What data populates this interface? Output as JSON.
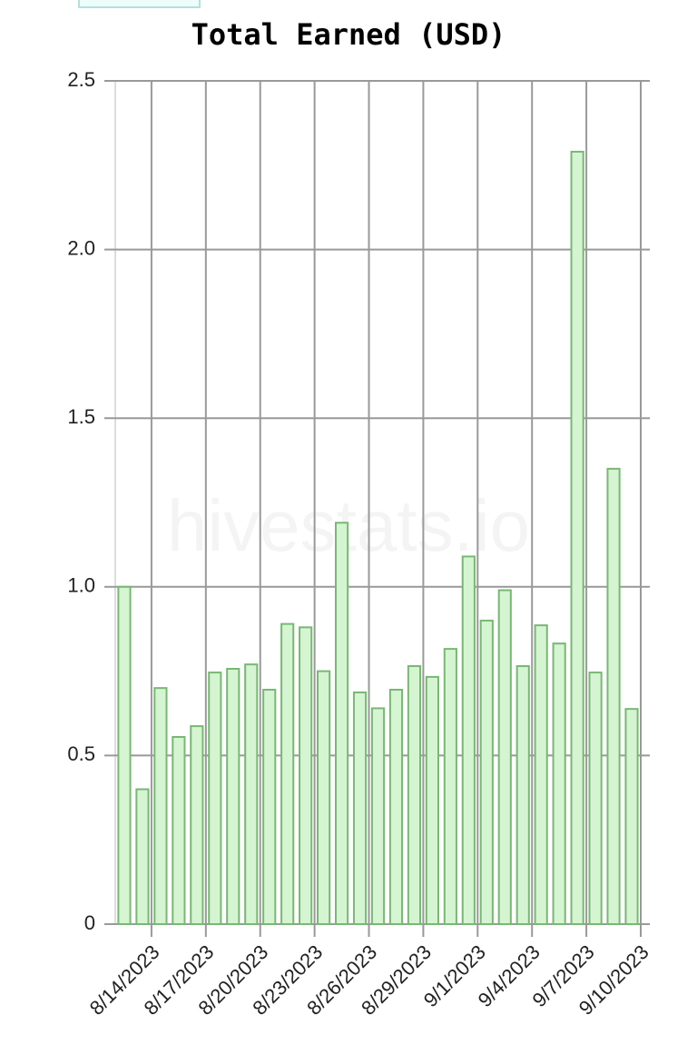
{
  "chart_data": {
    "type": "bar",
    "title": "Total Earned (USD)",
    "watermark": "hivestats.io",
    "categories": [
      null,
      "8/14/2023",
      null,
      null,
      "8/17/2023",
      null,
      null,
      "8/20/2023",
      null,
      null,
      "8/23/2023",
      null,
      null,
      "8/26/2023",
      null,
      null,
      "8/29/2023",
      null,
      null,
      "9/1/2023",
      null,
      null,
      "9/4/2023",
      null,
      null,
      "9/7/2023",
      null,
      null,
      "9/10/2023"
    ],
    "values": [
      1.0,
      0.4,
      0.7,
      0.555,
      0.587,
      0.746,
      0.757,
      0.77,
      0.695,
      0.89,
      0.88,
      0.75,
      1.19,
      0.687,
      0.64,
      0.695,
      0.765,
      0.733,
      0.816,
      1.09,
      0.9,
      0.99,
      0.765,
      0.886,
      0.832,
      2.29,
      0.746,
      1.35,
      0.638
    ],
    "color": "#d5f4d1",
    "edge_color": "#78b874",
    "ylim": [
      0,
      2.5
    ],
    "yticks": [
      0,
      0.5,
      {
        "value": 1,
        "label": "1.0"
      },
      1.5,
      {
        "value": 2,
        "label": "2.0"
      },
      2.5
    ],
    "grid": true
  }
}
